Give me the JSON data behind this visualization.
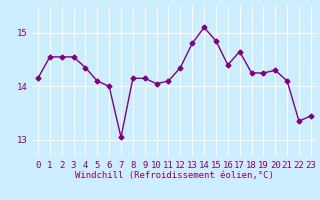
{
  "x": [
    0,
    1,
    2,
    3,
    4,
    5,
    6,
    7,
    8,
    9,
    10,
    11,
    12,
    13,
    14,
    15,
    16,
    17,
    18,
    19,
    20,
    21,
    22,
    23
  ],
  "y": [
    14.15,
    14.55,
    14.55,
    14.55,
    14.35,
    14.1,
    14.0,
    13.05,
    14.15,
    14.15,
    14.05,
    14.1,
    14.35,
    14.8,
    15.1,
    14.85,
    14.4,
    14.65,
    14.25,
    14.25,
    14.3,
    14.1,
    13.35,
    13.45
  ],
  "line_color": "#800080",
  "marker": "D",
  "marker_size": 2.5,
  "linewidth": 1.0,
  "bg_color": "#cceeff",
  "grid_color": "#ffffff",
  "xlabel": "Windchill (Refroidissement éolien,°C)",
  "xlabel_fontsize": 6.5,
  "tick_fontsize": 6.5,
  "ylim": [
    12.7,
    15.5
  ],
  "yticks": [
    13,
    14,
    15
  ],
  "xtick_labels": [
    "0",
    "1",
    "2",
    "3",
    "4",
    "5",
    "6",
    "7",
    "8",
    "9",
    "10",
    "11",
    "12",
    "13",
    "14",
    "15",
    "16",
    "17",
    "18",
    "19",
    "20",
    "21",
    "22",
    "23"
  ]
}
